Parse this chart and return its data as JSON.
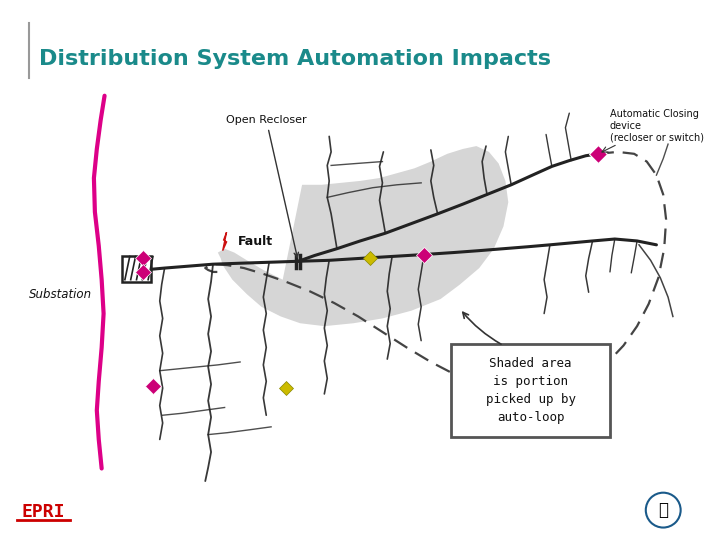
{
  "title": "Distribution System Automation Impacts",
  "title_color": "#1a8a8a",
  "title_fontsize": 16,
  "bg_color": "#ffffff",
  "label_open_recloser": "Open Recloser",
  "label_fault": "Fault",
  "label_substation": "Substation",
  "label_auto_closing_line1": "Automatic Closing",
  "label_auto_closing_line2": "device",
  "label_auto_closing_line3": "(recloser or switch)",
  "label_shaded_box": "Shaded area\nis portion\npicked up by\nauto-loop",
  "shaded_color": "#c0c0c0",
  "line_color": "#222222",
  "dashed_color": "#444444",
  "pink_line_color": "#dd0088",
  "pink_marker_color": "#cc0077",
  "yellow_marker_color": "#ccbb00",
  "red_fault_color": "#cc1111",
  "box_border_color": "#555555",
  "epri_color": "#cc0000"
}
